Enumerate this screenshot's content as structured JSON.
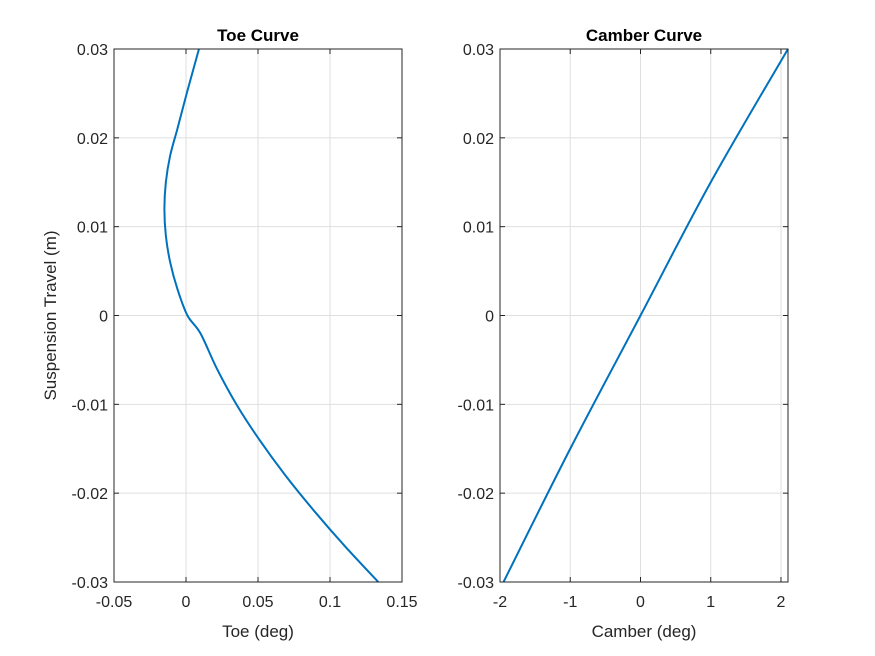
{
  "chart_data": [
    {
      "type": "line",
      "title": "Toe Curve",
      "xlabel": "Toe (deg)",
      "ylabel": "Suspension Travel (m)",
      "xlim": [
        -0.05,
        0.15
      ],
      "ylim": [
        -0.03,
        0.03
      ],
      "xticks": [
        "-0.05",
        "0",
        "0.05",
        "0.1",
        "0.15"
      ],
      "yticks": [
        "-0.03",
        "-0.02",
        "-0.01",
        "0",
        "0.01",
        "0.02",
        "0.03"
      ],
      "grid": true,
      "line_color": "#0072BD",
      "series": [
        {
          "x": [
            0.1335,
            0.1105,
            0.089,
            0.069,
            0.051,
            0.035,
            0.0215,
            0.01,
            0.001,
            -0.006,
            -0.011,
            -0.014,
            -0.015,
            -0.014,
            -0.011,
            -0.006,
            0.0005,
            0.009
          ],
          "y": [
            -0.03,
            -0.026,
            -0.022,
            -0.018,
            -0.014,
            -0.01,
            -0.006,
            -0.002,
            0.0,
            0.003,
            0.006,
            0.009,
            0.012,
            0.015,
            0.018,
            0.021,
            0.025,
            0.03
          ]
        }
      ]
    },
    {
      "type": "line",
      "title": "Camber Curve",
      "xlabel": "Camber (deg)",
      "ylabel": "",
      "xlim": [
        -2,
        2.1
      ],
      "ylim": [
        -0.03,
        0.03
      ],
      "xticks": [
        "-2",
        "-1",
        "0",
        "1",
        "2"
      ],
      "yticks": [
        "-0.03",
        "-0.02",
        "-0.01",
        "0",
        "0.01",
        "0.02",
        "0.03"
      ],
      "grid": true,
      "line_color": "#0072BD",
      "series": [
        {
          "x": [
            -1.95,
            -1.0,
            0.0,
            1.0,
            2.1
          ],
          "y": [
            -0.03,
            -0.015,
            0.0,
            0.015,
            0.03
          ]
        }
      ]
    }
  ]
}
